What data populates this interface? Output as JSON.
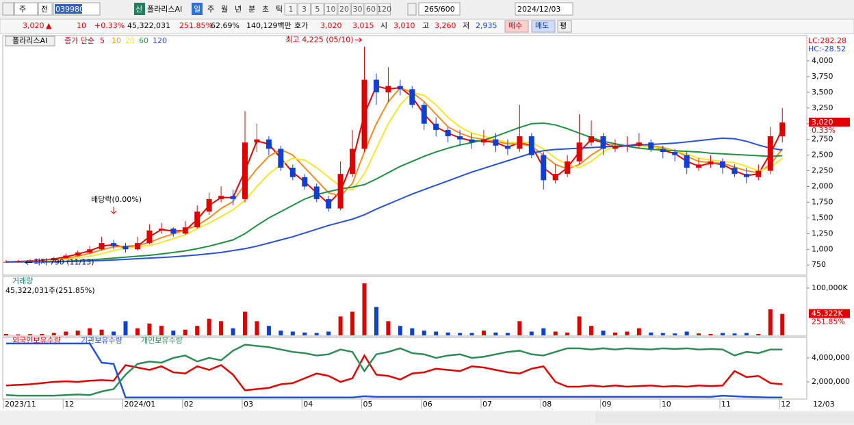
{
  "toolbar": {
    "market": "주",
    "scope": "전",
    "code": "039980",
    "badge": "신",
    "name": "폴라리스AI",
    "periods": [
      "일",
      "주",
      "월",
      "년",
      "분",
      "초",
      "틱"
    ],
    "intervals": [
      1,
      3,
      5,
      10,
      20,
      30,
      60,
      120
    ],
    "count": 265,
    "max": "/600",
    "date": "2024/12/03"
  },
  "info_bar": {
    "price": "3,020",
    "arrow": "▲",
    "change": 10,
    "change_rate": "+0.33%",
    "volume": "45,322,031",
    "volume_ratio": "251.85%",
    "turnover": "62.69%",
    "amount": "140,129백만",
    "quote_label": "호가",
    "ask": "3,020",
    "bid": "3,015",
    "open_label": "시",
    "open": "3,010",
    "high_label": "고",
    "high": "3,260",
    "low_label": "저",
    "low": "2,935",
    "buy": "매수",
    "sell": "매도",
    "avg": "평"
  },
  "chart_data": [
    {
      "type": "candlestick",
      "title": "폴라리스AI",
      "indicator": "종가 단순",
      "lc_label": "LC:282.28",
      "hc_label": "HC:-28.52",
      "open": [
        790,
        800,
        810,
        820,
        830,
        860,
        900,
        950,
        1000,
        1100,
        1050,
        1000,
        1100,
        1300,
        1330,
        1250,
        1350,
        1600,
        1800,
        1850,
        1800,
        2700,
        2750,
        2600,
        2300,
        2150,
        2000,
        1800,
        1650,
        2200,
        2600,
        3700,
        3500,
        3600,
        3550,
        3300,
        3000,
        2900,
        2800,
        2750,
        2700,
        2750,
        2650,
        2600,
        2800,
        2500,
        2100,
        2200,
        2400,
        2700,
        2800,
        2600,
        2650,
        2650,
        2700,
        2600,
        2550,
        2500,
        2300,
        2350,
        2400,
        2300,
        2200,
        2150,
        2250,
        2800
      ],
      "high": [
        830,
        830,
        840,
        850,
        880,
        930,
        980,
        1050,
        1200,
        1150,
        1100,
        1200,
        1400,
        1420,
        1350,
        1450,
        1700,
        1900,
        2000,
        1950,
        3200,
        3000,
        2800,
        2650,
        2350,
        2200,
        2050,
        1850,
        2400,
        2900,
        4225,
        3800,
        3900,
        3700,
        3600,
        3350,
        3100,
        2950,
        2900,
        2850,
        2900,
        2850,
        2750,
        3300,
        2850,
        2550,
        2350,
        2500,
        3150,
        3050,
        2850,
        2750,
        2800,
        2850,
        2750,
        2650,
        2600,
        2550,
        2450,
        2500,
        2450,
        2350,
        2300,
        2350,
        2950,
        3250
      ],
      "low": [
        790,
        795,
        800,
        810,
        820,
        850,
        890,
        930,
        980,
        1000,
        950,
        980,
        1080,
        1250,
        1200,
        1230,
        1330,
        1550,
        1750,
        1700,
        1750,
        2550,
        2500,
        2250,
        2100,
        1950,
        1750,
        1600,
        1620,
        2150,
        2550,
        3300,
        3350,
        3450,
        3250,
        2900,
        2800,
        2700,
        2650,
        2600,
        2650,
        2550,
        2500,
        2550,
        2450,
        1950,
        2050,
        2150,
        2350,
        2650,
        2500,
        2550,
        2550,
        2600,
        2550,
        2450,
        2400,
        2200,
        2250,
        2300,
        2200,
        2150,
        2050,
        2100,
        2200,
        2700
      ],
      "close": [
        800,
        810,
        820,
        830,
        860,
        900,
        950,
        1000,
        1100,
        1050,
        1000,
        1100,
        1300,
        1330,
        1250,
        1350,
        1600,
        1800,
        1850,
        1800,
        2700,
        2750,
        2600,
        2300,
        2150,
        2000,
        1800,
        1650,
        2200,
        2600,
        3700,
        3500,
        3600,
        3550,
        3300,
        3000,
        2900,
        2800,
        2750,
        2700,
        2750,
        2650,
        2600,
        2800,
        2500,
        2100,
        2200,
        2400,
        2700,
        2800,
        2600,
        2650,
        2650,
        2700,
        2600,
        2550,
        2500,
        2300,
        2350,
        2400,
        2300,
        2200,
        2150,
        2250,
        2800,
        3020
      ],
      "up_color": "#e00000",
      "down_color": "#1040d0",
      "series": [
        {
          "name": "5",
          "color": "#e00000",
          "values": [
            800,
            805,
            815,
            825,
            845,
            880,
            925,
            975,
            1050,
            1075,
            1025,
            1050,
            1200,
            1315,
            1290,
            1300,
            1475,
            1700,
            1825,
            1825,
            2250,
            2725,
            2675,
            2450,
            2225,
            2075,
            1900,
            1725,
            1925,
            2400,
            3150,
            3600,
            3550,
            3575,
            3425,
            3150,
            2950,
            2850,
            2775,
            2725,
            2725,
            2700,
            2625,
            2700,
            2650,
            2300,
            2150,
            2300,
            2550,
            2750,
            2700,
            2625,
            2650,
            2675,
            2650,
            2575,
            2525,
            2400,
            2325,
            2375,
            2350,
            2250,
            2175,
            2200,
            2525,
            2910
          ]
        },
        {
          "name": "10",
          "color": "#f08c1e",
          "values": [
            800,
            800,
            810,
            815,
            830,
            855,
            890,
            935,
            990,
            1040,
            1050,
            1060,
            1110,
            1185,
            1245,
            1310,
            1380,
            1500,
            1650,
            1760,
            2040,
            2280,
            2480,
            2590,
            2500,
            2300,
            2100,
            1900,
            1850,
            2050,
            2550,
            3000,
            3350,
            3570,
            3500,
            3350,
            3150,
            2950,
            2850,
            2780,
            2750,
            2720,
            2680,
            2680,
            2640,
            2500,
            2350,
            2280,
            2350,
            2500,
            2620,
            2680,
            2650,
            2650,
            2650,
            2620,
            2570,
            2480,
            2400,
            2380,
            2370,
            2310,
            2250,
            2220,
            2350,
            2600
          ]
        },
        {
          "name": "20",
          "color": "#f5e62a",
          "values": [
            800,
            800,
            805,
            810,
            820,
            840,
            860,
            890,
            930,
            980,
            1020,
            1040,
            1060,
            1110,
            1170,
            1230,
            1330,
            1420,
            1520,
            1630,
            1780,
            2000,
            2200,
            2350,
            2450,
            2420,
            2300,
            2150,
            2000,
            1950,
            2200,
            2600,
            3000,
            3300,
            3500,
            3450,
            3300,
            3100,
            2950,
            2850,
            2800,
            2750,
            2700,
            2700,
            2700,
            2600,
            2450,
            2350,
            2300,
            2400,
            2550,
            2650,
            2650,
            2650,
            2630,
            2600,
            2570,
            2520,
            2450,
            2420,
            2400,
            2380,
            2320,
            2250,
            2300,
            2450
          ]
        },
        {
          "name": "60",
          "color": "#1e9040",
          "values": [
            800,
            800,
            800,
            800,
            805,
            810,
            820,
            830,
            845,
            860,
            875,
            890,
            905,
            925,
            950,
            975,
            1010,
            1050,
            1100,
            1150,
            1250,
            1380,
            1500,
            1600,
            1700,
            1800,
            1870,
            1920,
            1960,
            1990,
            2030,
            2120,
            2220,
            2320,
            2400,
            2480,
            2550,
            2610,
            2660,
            2700,
            2740,
            2800,
            2870,
            2940,
            3000,
            3010,
            2980,
            2920,
            2850,
            2780,
            2720,
            2680,
            2640,
            2610,
            2590,
            2580,
            2570,
            2560,
            2550,
            2530,
            2520,
            2510,
            2500,
            2490,
            2480,
            2490
          ]
        },
        {
          "name": "120",
          "color": "#2850d8",
          "values": [
            800,
            800,
            800,
            800,
            800,
            805,
            810,
            815,
            820,
            830,
            840,
            850,
            860,
            870,
            880,
            895,
            910,
            930,
            950,
            980,
            1010,
            1050,
            1100,
            1150,
            1200,
            1260,
            1320,
            1380,
            1430,
            1480,
            1550,
            1640,
            1720,
            1800,
            1880,
            1950,
            2020,
            2090,
            2160,
            2230,
            2290,
            2350,
            2410,
            2470,
            2530,
            2570,
            2590,
            2600,
            2610,
            2620,
            2630,
            2640,
            2650,
            2660,
            2670,
            2680,
            2690,
            2710,
            2730,
            2750,
            2770,
            2760,
            2720,
            2660,
            2610,
            2580
          ]
        }
      ],
      "ylim": [
        600,
        4370
      ],
      "yticks": [
        750,
        {
          "value": 1000,
          "label": "1,000"
        },
        {
          "value": 1250,
          "label": "1,250"
        },
        {
          "value": 1500,
          "label": "1,500"
        },
        {
          "value": 1750,
          "label": "1,750"
        },
        {
          "value": 2000,
          "label": "2,000"
        },
        {
          "value": 2250,
          "label": "2,250"
        },
        {
          "value": 2500,
          "label": "2,500"
        },
        {
          "value": 2750,
          "label": "2,750"
        },
        {
          "value": 3000,
          "label": "3,000"
        },
        {
          "value": 3250,
          "label": "3,250"
        },
        {
          "value": 3500,
          "label": "3,500"
        },
        {
          "value": 3750,
          "label": "3,750"
        },
        {
          "value": 4000,
          "label": "4,000"
        }
      ],
      "annotations": [
        {
          "text": "최고 4,225 (05/10)",
          "x": 30,
          "y": 4225
        },
        {
          "text": "최저 790 (11/13)",
          "x": 0,
          "y": 790
        },
        {
          "text": "배당락(0.00%)",
          "x": 9,
          "y": 1350
        }
      ],
      "badge": {
        "value": 3020,
        "label": "3,020",
        "change": "0.33%"
      }
    },
    {
      "type": "bar",
      "title": "거래량",
      "subtitle": "45,322,031주(251.85%)",
      "values": [
        3000,
        2000,
        2500,
        3000,
        5000,
        8000,
        10000,
        15000,
        12000,
        8000,
        30000,
        15000,
        25000,
        20000,
        10000,
        12000,
        20000,
        35000,
        30000,
        15000,
        50000,
        30000,
        20000,
        10000,
        8000,
        6000,
        5000,
        8000,
        40000,
        50000,
        110000,
        60000,
        30000,
        20000,
        15000,
        10000,
        8000,
        6000,
        5000,
        5000,
        10000,
        6000,
        5000,
        30000,
        8000,
        15000,
        8000,
        6000,
        40000,
        20000,
        10000,
        6000,
        8000,
        15000,
        6000,
        5000,
        4000,
        8000,
        4000,
        3000,
        5000,
        4000,
        5000,
        3000,
        55000,
        45322
      ],
      "ylim": [
        0,
        123000
      ],
      "yticks": [
        {
          "value": 100000,
          "label": "100,000K"
        }
      ],
      "badge": {
        "value": 45322,
        "label": "45,322K",
        "ratio": "251.85%"
      }
    },
    {
      "type": "line",
      "categories": [
        "2023/11",
        null,
        null,
        null,
        null,
        "12",
        null,
        null,
        null,
        null,
        "2024/01",
        null,
        null,
        null,
        null,
        "02",
        null,
        null,
        null,
        null,
        "03",
        null,
        null,
        null,
        null,
        "04",
        null,
        null,
        null,
        null,
        "05",
        null,
        null,
        null,
        null,
        "06",
        null,
        null,
        null,
        null,
        "07",
        null,
        null,
        null,
        null,
        "08",
        null,
        null,
        null,
        null,
        "09",
        null,
        null,
        null,
        null,
        "10",
        null,
        null,
        null,
        null,
        "11",
        null,
        null,
        null,
        null,
        "12"
      ],
      "current_date": "12/03",
      "series": [
        {
          "name": "외국인보유수량",
          "color": "#e00000",
          "values": [
            1700000,
            1750000,
            1800000,
            1900000,
            2000000,
            2050000,
            2000000,
            2100000,
            2150000,
            2100000,
            3400000,
            3200000,
            3000000,
            3300000,
            2800000,
            2700000,
            3300000,
            3000000,
            3400000,
            2600000,
            1300000,
            1400000,
            1500000,
            1800000,
            1900000,
            2300000,
            2700000,
            2500000,
            2000000,
            2300000,
            4200000,
            2600000,
            2500000,
            2200000,
            2700000,
            2800000,
            3100000,
            3000000,
            2900000,
            3300000,
            3200000,
            3000000,
            2800000,
            2700000,
            3100000,
            3300000,
            2000000,
            1600000,
            1600000,
            1700000,
            1600000,
            1700000,
            1600000,
            1650000,
            1700000,
            1600000,
            1650000,
            1600000,
            1700000,
            1650000,
            1700000,
            2900000,
            2400000,
            2500000,
            1900000,
            1800000
          ]
        },
        {
          "name": "기관보유수량",
          "color": "#2050e0",
          "values": [
            5200000,
            5200000,
            5200000,
            5200000,
            5200000,
            5200000,
            5200000,
            5200000,
            3600000,
            3500000,
            700000,
            700000,
            700000,
            700000,
            700000,
            700000,
            700000,
            700000,
            700000,
            700000,
            700000,
            700000,
            700000,
            700000,
            700000,
            700000,
            700000,
            700000,
            700000,
            700000,
            800000,
            750000,
            750000,
            750000,
            750000,
            750000,
            750000,
            750000,
            750000,
            750000,
            750000,
            750000,
            750000,
            750000,
            750000,
            750000,
            750000,
            750000,
            750000,
            750000,
            750000,
            750000,
            750000,
            750000,
            750000,
            750000,
            750000,
            750000,
            750000,
            750000,
            850000,
            800000,
            750000,
            720000,
            700000,
            700000
          ]
        },
        {
          "name": "개인보유수량",
          "color": "#2e8b57",
          "values": [
            900000,
            850000,
            850000,
            850000,
            850000,
            900000,
            950000,
            900000,
            1200000,
            1400000,
            2600000,
            3500000,
            3700000,
            3600000,
            4000000,
            4200000,
            3700000,
            4000000,
            3800000,
            4600000,
            5100000,
            5000000,
            4900000,
            4700000,
            4500000,
            4400000,
            4200000,
            4300000,
            4700000,
            4500000,
            2900000,
            4300000,
            4500000,
            4800000,
            4400000,
            4300000,
            4000000,
            4200000,
            4300000,
            4000000,
            4100000,
            4300000,
            4500000,
            4600000,
            4300000,
            4200000,
            4500000,
            4800000,
            4800000,
            4700000,
            4800000,
            4700000,
            4800000,
            4750000,
            4700000,
            4800000,
            4750000,
            4800000,
            4700000,
            4750000,
            4700000,
            4200000,
            4500000,
            4400000,
            4700000,
            4700000
          ]
        }
      ],
      "ylim": [
        630000,
        5710000
      ],
      "yticks": [
        {
          "value": 2000000,
          "label": "2,000,000"
        },
        {
          "value": 4000000,
          "label": "4,000,000"
        }
      ]
    }
  ]
}
